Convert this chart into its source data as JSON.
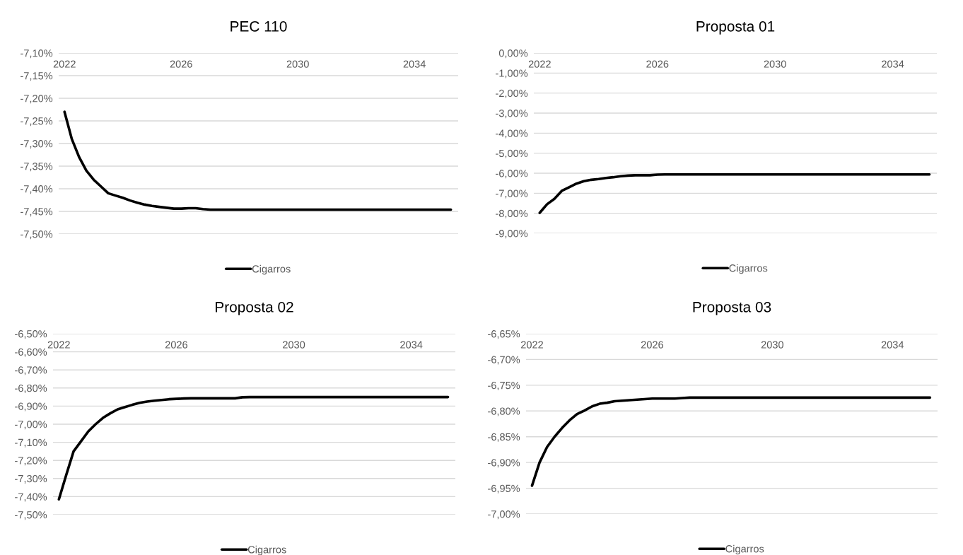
{
  "chart_data": [
    {
      "type": "line",
      "title": "PEC 110",
      "legend": "bottom",
      "grid": "y",
      "marker": "none",
      "line_style": "solid",
      "x": [
        2022,
        2022.25,
        2022.5,
        2022.75,
        2023,
        2023.25,
        2023.5,
        2023.75,
        2024,
        2024.25,
        2024.5,
        2024.75,
        2025,
        2025.25,
        2025.5,
        2025.75,
        2026,
        2026.25,
        2026.5,
        2026.75,
        2027,
        2027.25,
        2027.5,
        2027.75,
        2028,
        2028.25,
        2028.5,
        2028.75,
        2029,
        2029.25,
        2029.5,
        2029.75,
        2030,
        2030.25,
        2030.5,
        2030.75,
        2031,
        2031.25,
        2031.5,
        2031.75,
        2032,
        2032.25,
        2032.5,
        2032.75,
        2033,
        2033.25,
        2033.5,
        2033.75,
        2034,
        2034.25,
        2034.5,
        2034.75,
        2035,
        2035.25
      ],
      "xlim": [
        2021.8,
        2035.5
      ],
      "xticks": [
        2022,
        2026,
        2030,
        2034
      ],
      "ylim": [
        -7.5,
        -7.1
      ],
      "yticks": [
        {
          "value": -7.5,
          "label": "-7,50%"
        },
        {
          "value": -7.45,
          "label": "-7,45%"
        },
        {
          "value": -7.4,
          "label": "-7,40%"
        },
        {
          "value": -7.35,
          "label": "-7,35%"
        },
        {
          "value": -7.3,
          "label": "-7,30%"
        },
        {
          "value": -7.25,
          "label": "-7,25%"
        },
        {
          "value": -7.2,
          "label": "-7,20%"
        },
        {
          "value": -7.15,
          "label": "-7,15%"
        },
        {
          "value": -7.1,
          "label": "-7,10%"
        }
      ],
      "series": [
        {
          "name": "Cigarros",
          "color": "#000000",
          "values": [
            -7.23,
            -7.29,
            -7.33,
            -7.36,
            -7.38,
            -7.395,
            -7.41,
            -7.415,
            -7.42,
            -7.426,
            -7.431,
            -7.435,
            -7.438,
            -7.44,
            -7.442,
            -7.444,
            -7.444,
            -7.443,
            -7.443,
            -7.445,
            -7.446,
            -7.446,
            -7.446,
            -7.446,
            -7.446,
            -7.446,
            -7.446,
            -7.446,
            -7.446,
            -7.446,
            -7.446,
            -7.446,
            -7.446,
            -7.446,
            -7.446,
            -7.446,
            -7.446,
            -7.446,
            -7.446,
            -7.446,
            -7.446,
            -7.446,
            -7.446,
            -7.446,
            -7.446,
            -7.446,
            -7.446,
            -7.446,
            -7.446,
            -7.446,
            -7.446,
            -7.446,
            -7.446,
            -7.446
          ]
        }
      ]
    },
    {
      "type": "line",
      "title": "Proposta 01",
      "legend": "bottom",
      "grid": "y",
      "marker": "none",
      "line_style": "solid",
      "x": [
        2022,
        2022.25,
        2022.5,
        2022.75,
        2023,
        2023.25,
        2023.5,
        2023.75,
        2024,
        2024.25,
        2024.5,
        2024.75,
        2025,
        2025.25,
        2025.5,
        2025.75,
        2026,
        2026.25,
        2026.5,
        2026.75,
        2027,
        2027.25,
        2027.5,
        2027.75,
        2028,
        2028.25,
        2028.5,
        2028.75,
        2029,
        2029.25,
        2029.5,
        2029.75,
        2030,
        2030.25,
        2030.5,
        2030.75,
        2031,
        2031.25,
        2031.5,
        2031.75,
        2032,
        2032.25,
        2032.5,
        2032.75,
        2033,
        2033.25,
        2033.5,
        2033.75,
        2034,
        2034.25,
        2034.5,
        2034.75,
        2035,
        2035.25
      ],
      "xlim": [
        2021.8,
        2035.5
      ],
      "xticks": [
        2022,
        2026,
        2030,
        2034
      ],
      "ylim": [
        -9,
        0
      ],
      "yticks": [
        {
          "value": -9,
          "label": "-9,00%"
        },
        {
          "value": -8,
          "label": "-8,00%"
        },
        {
          "value": -7,
          "label": "-7,00%"
        },
        {
          "value": -6,
          "label": "-6,00%"
        },
        {
          "value": -5,
          "label": "-5,00%"
        },
        {
          "value": -4,
          "label": "-4,00%"
        },
        {
          "value": -3,
          "label": "-3,00%"
        },
        {
          "value": -2,
          "label": "-2,00%"
        },
        {
          "value": -1,
          "label": "-1,00%"
        },
        {
          "value": 0,
          "label": "0,00%"
        }
      ],
      "series": [
        {
          "name": "Cigarros",
          "color": "#000000",
          "values": [
            -7.98,
            -7.55,
            -7.28,
            -6.88,
            -6.7,
            -6.52,
            -6.4,
            -6.33,
            -6.29,
            -6.24,
            -6.2,
            -6.15,
            -6.12,
            -6.1,
            -6.1,
            -6.1,
            -6.07,
            -6.06,
            -6.06,
            -6.06,
            -6.06,
            -6.06,
            -6.06,
            -6.06,
            -6.06,
            -6.06,
            -6.06,
            -6.06,
            -6.06,
            -6.06,
            -6.06,
            -6.06,
            -6.06,
            -6.06,
            -6.06,
            -6.06,
            -6.06,
            -6.06,
            -6.06,
            -6.06,
            -6.06,
            -6.06,
            -6.06,
            -6.06,
            -6.06,
            -6.06,
            -6.06,
            -6.06,
            -6.06,
            -6.06,
            -6.06,
            -6.06,
            -6.06,
            -6.06
          ]
        }
      ]
    },
    {
      "type": "line",
      "title": "Proposta 02",
      "legend": "bottom",
      "grid": "y",
      "marker": "none",
      "line_style": "solid",
      "x": [
        2022,
        2022.25,
        2022.5,
        2022.75,
        2023,
        2023.25,
        2023.5,
        2023.75,
        2024,
        2024.25,
        2024.5,
        2024.75,
        2025,
        2025.25,
        2025.5,
        2025.75,
        2026,
        2026.25,
        2026.5,
        2026.75,
        2027,
        2027.25,
        2027.5,
        2027.75,
        2028,
        2028.25,
        2028.5,
        2028.75,
        2029,
        2029.25,
        2029.5,
        2029.75,
        2030,
        2030.25,
        2030.5,
        2030.75,
        2031,
        2031.25,
        2031.5,
        2031.75,
        2032,
        2032.25,
        2032.5,
        2032.75,
        2033,
        2033.25,
        2033.5,
        2033.75,
        2034,
        2034.25,
        2034.5,
        2034.75,
        2035,
        2035.25
      ],
      "xlim": [
        2021.8,
        2035.5
      ],
      "xticks": [
        2022,
        2026,
        2030,
        2034
      ],
      "ylim": [
        -7.5,
        -6.5
      ],
      "yticks": [
        {
          "value": -7.5,
          "label": "-7,50%"
        },
        {
          "value": -7.4,
          "label": "-7,40%"
        },
        {
          "value": -7.3,
          "label": "-7,30%"
        },
        {
          "value": -7.2,
          "label": "-7,20%"
        },
        {
          "value": -7.1,
          "label": "-7,10%"
        },
        {
          "value": -7.0,
          "label": "-7,00%"
        },
        {
          "value": -6.9,
          "label": "-6,90%"
        },
        {
          "value": -6.8,
          "label": "-6,80%"
        },
        {
          "value": -6.7,
          "label": "-6,70%"
        },
        {
          "value": -6.6,
          "label": "-6,60%"
        },
        {
          "value": -6.5,
          "label": "-6,50%"
        }
      ],
      "series": [
        {
          "name": "Cigarros",
          "color": "#000000",
          "values": [
            -7.415,
            -7.28,
            -7.15,
            -7.095,
            -7.04,
            -7.0,
            -6.965,
            -6.94,
            -6.918,
            -6.905,
            -6.893,
            -6.882,
            -6.875,
            -6.87,
            -6.866,
            -6.862,
            -6.86,
            -6.858,
            -6.857,
            -6.857,
            -6.857,
            -6.857,
            -6.857,
            -6.857,
            -6.857,
            -6.851,
            -6.85,
            -6.85,
            -6.85,
            -6.85,
            -6.85,
            -6.85,
            -6.85,
            -6.85,
            -6.85,
            -6.85,
            -6.85,
            -6.85,
            -6.85,
            -6.85,
            -6.85,
            -6.85,
            -6.85,
            -6.85,
            -6.85,
            -6.85,
            -6.85,
            -6.85,
            -6.85,
            -6.85,
            -6.85,
            -6.85,
            -6.85,
            -6.85
          ]
        }
      ]
    },
    {
      "type": "line",
      "title": "Proposta 03",
      "legend": "bottom",
      "grid": "y",
      "marker": "none",
      "line_style": "solid",
      "x": [
        2022,
        2022.25,
        2022.5,
        2022.75,
        2023,
        2023.25,
        2023.5,
        2023.75,
        2024,
        2024.25,
        2024.5,
        2024.75,
        2025,
        2025.25,
        2025.5,
        2025.75,
        2026,
        2026.25,
        2026.5,
        2026.75,
        2027,
        2027.25,
        2027.5,
        2027.75,
        2028,
        2028.25,
        2028.5,
        2028.75,
        2029,
        2029.25,
        2029.5,
        2029.75,
        2030,
        2030.25,
        2030.5,
        2030.75,
        2031,
        2031.25,
        2031.5,
        2031.75,
        2032,
        2032.25,
        2032.5,
        2032.75,
        2033,
        2033.25,
        2033.5,
        2033.75,
        2034,
        2034.25,
        2034.5,
        2034.75,
        2035,
        2035.25
      ],
      "xlim": [
        2021.8,
        2035.5
      ],
      "xticks": [
        2022,
        2026,
        2030,
        2034
      ],
      "ylim": [
        -7.0,
        -6.65
      ],
      "yticks": [
        {
          "value": -7.0,
          "label": "-7,00%"
        },
        {
          "value": -6.95,
          "label": "-6,95%"
        },
        {
          "value": -6.9,
          "label": "-6,90%"
        },
        {
          "value": -6.85,
          "label": "-6,85%"
        },
        {
          "value": -6.8,
          "label": "-6,80%"
        },
        {
          "value": -6.75,
          "label": "-6,75%"
        },
        {
          "value": -6.7,
          "label": "-6,70%"
        },
        {
          "value": -6.65,
          "label": "-6,65%"
        }
      ],
      "series": [
        {
          "name": "Cigarros",
          "color": "#000000",
          "values": [
            -6.945,
            -6.9,
            -6.87,
            -6.85,
            -6.833,
            -6.818,
            -6.806,
            -6.799,
            -6.791,
            -6.786,
            -6.784,
            -6.781,
            -6.78,
            -6.779,
            -6.778,
            -6.777,
            -6.776,
            -6.776,
            -6.776,
            -6.776,
            -6.775,
            -6.774,
            -6.774,
            -6.774,
            -6.774,
            -6.774,
            -6.774,
            -6.774,
            -6.774,
            -6.774,
            -6.774,
            -6.774,
            -6.774,
            -6.774,
            -6.774,
            -6.774,
            -6.774,
            -6.774,
            -6.774,
            -6.774,
            -6.774,
            -6.774,
            -6.774,
            -6.774,
            -6.774,
            -6.774,
            -6.774,
            -6.774,
            -6.774,
            -6.774,
            -6.774,
            -6.774,
            -6.774,
            -6.774
          ]
        }
      ]
    }
  ]
}
